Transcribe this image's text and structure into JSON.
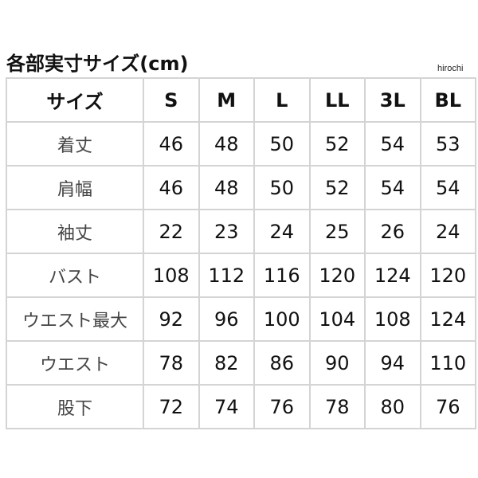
{
  "title": "各部実寸サイズ(cm)",
  "credit": "hirochi",
  "table": {
    "header": [
      "サイズ",
      "S",
      "M",
      "L",
      "LL",
      "3L",
      "BL"
    ],
    "rows": [
      {
        "label": "着丈",
        "values": [
          "46",
          "48",
          "50",
          "52",
          "54",
          "53"
        ]
      },
      {
        "label": "肩幅",
        "values": [
          "46",
          "48",
          "50",
          "52",
          "54",
          "54"
        ]
      },
      {
        "label": "袖丈",
        "values": [
          "22",
          "23",
          "24",
          "25",
          "26",
          "24"
        ]
      },
      {
        "label": "バスト",
        "values": [
          "108",
          "112",
          "116",
          "120",
          "124",
          "120"
        ]
      },
      {
        "label": "ウエスト最大",
        "values": [
          "92",
          "96",
          "100",
          "104",
          "108",
          "124"
        ]
      },
      {
        "label": "ウエスト",
        "values": [
          "78",
          "82",
          "86",
          "90",
          "94",
          "110"
        ]
      },
      {
        "label": "股下",
        "values": [
          "72",
          "74",
          "76",
          "78",
          "80",
          "76"
        ]
      }
    ]
  }
}
